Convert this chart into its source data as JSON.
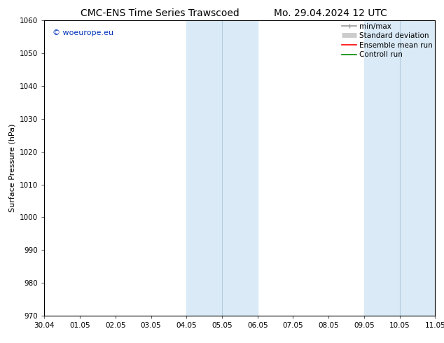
{
  "title_left": "CMC-ENS Time Series Trawscoed",
  "title_right": "Mo. 29.04.2024 12 UTC",
  "ylabel": "Surface Pressure (hPa)",
  "ylim": [
    970,
    1060
  ],
  "yticks": [
    970,
    980,
    990,
    1000,
    1010,
    1020,
    1030,
    1040,
    1050,
    1060
  ],
  "xtick_labels": [
    "30.04",
    "01.05",
    "02.05",
    "03.05",
    "04.05",
    "05.05",
    "06.05",
    "07.05",
    "08.05",
    "09.05",
    "10.05",
    "11.05"
  ],
  "shaded_bands": [
    {
      "xstart": 4,
      "xend": 6
    },
    {
      "xstart": 9,
      "xend": 11
    }
  ],
  "band_dividers": [
    5,
    10
  ],
  "shade_color": "#daeaf7",
  "divider_color": "#b0cce0",
  "background_color": "#ffffff",
  "plot_bg_color": "#ffffff",
  "legend_items": [
    {
      "label": "min/max",
      "color": "#999999",
      "lw": 1.2
    },
    {
      "label": "Standard deviation",
      "color": "#cccccc",
      "lw": 5
    },
    {
      "label": "Ensemble mean run",
      "color": "#ff0000",
      "lw": 1.2
    },
    {
      "label": "Controll run",
      "color": "#008800",
      "lw": 1.2
    }
  ],
  "watermark": "© woeurope.eu",
  "watermark_color": "#0033bb",
  "title_fontsize": 10,
  "axis_label_fontsize": 8,
  "tick_fontsize": 7.5,
  "legend_fontsize": 7.5
}
